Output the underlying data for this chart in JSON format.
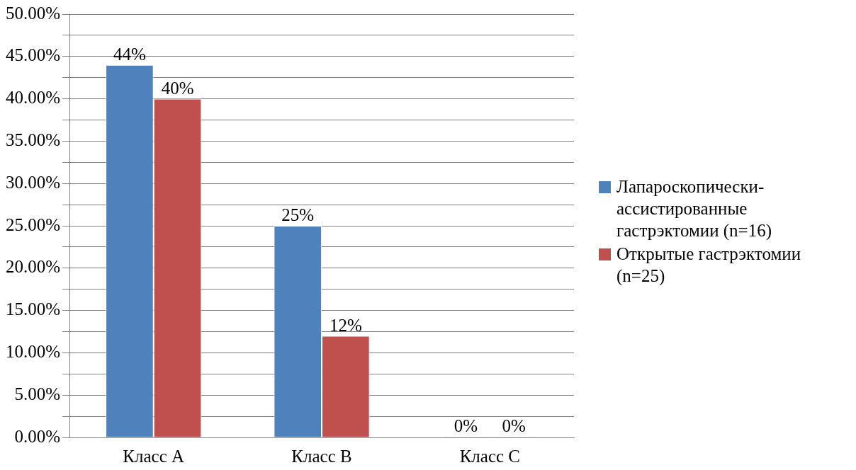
{
  "chart_data": {
    "type": "bar",
    "categories": [
      "Класс А",
      "Класс В",
      "Класс С"
    ],
    "series": [
      {
        "name": "Лапароскопически-ассистированные гастрэктомии (n=16)",
        "color": "#4f81bd",
        "values": [
          44,
          25,
          0
        ],
        "value_labels": [
          "44%",
          "25%",
          "0%"
        ]
      },
      {
        "name": "Открытые гастрэктомии (n=25)",
        "color": "#c0504d",
        "values": [
          40,
          12,
          0
        ],
        "value_labels": [
          "40%",
          "12%",
          "0%"
        ]
      }
    ],
    "ylim": [
      0,
      50
    ],
    "yticks": [
      {
        "value": 0,
        "label": "0.00%"
      },
      {
        "value": 2.5,
        "label": null
      },
      {
        "value": 5,
        "label": "5.00%"
      },
      {
        "value": 7.5,
        "label": null
      },
      {
        "value": 10,
        "label": "10.00%"
      },
      {
        "value": 12.5,
        "label": null
      },
      {
        "value": 15,
        "label": "15.00%"
      },
      {
        "value": 17.5,
        "label": null
      },
      {
        "value": 20,
        "label": "20.00%"
      },
      {
        "value": 22.5,
        "label": null
      },
      {
        "value": 25,
        "label": "25.00%"
      },
      {
        "value": 27.5,
        "label": null
      },
      {
        "value": 30,
        "label": "30.00%"
      },
      {
        "value": 32.5,
        "label": null
      },
      {
        "value": 35,
        "label": "35.00%"
      },
      {
        "value": 37.5,
        "label": null
      },
      {
        "value": 40,
        "label": "40.00%"
      },
      {
        "value": 42.5,
        "label": null
      },
      {
        "value": 45,
        "label": "45.00%"
      },
      {
        "value": 47.5,
        "label": null
      },
      {
        "value": 50,
        "label": "50.00%"
      }
    ],
    "grid": "y",
    "legend": "right"
  }
}
